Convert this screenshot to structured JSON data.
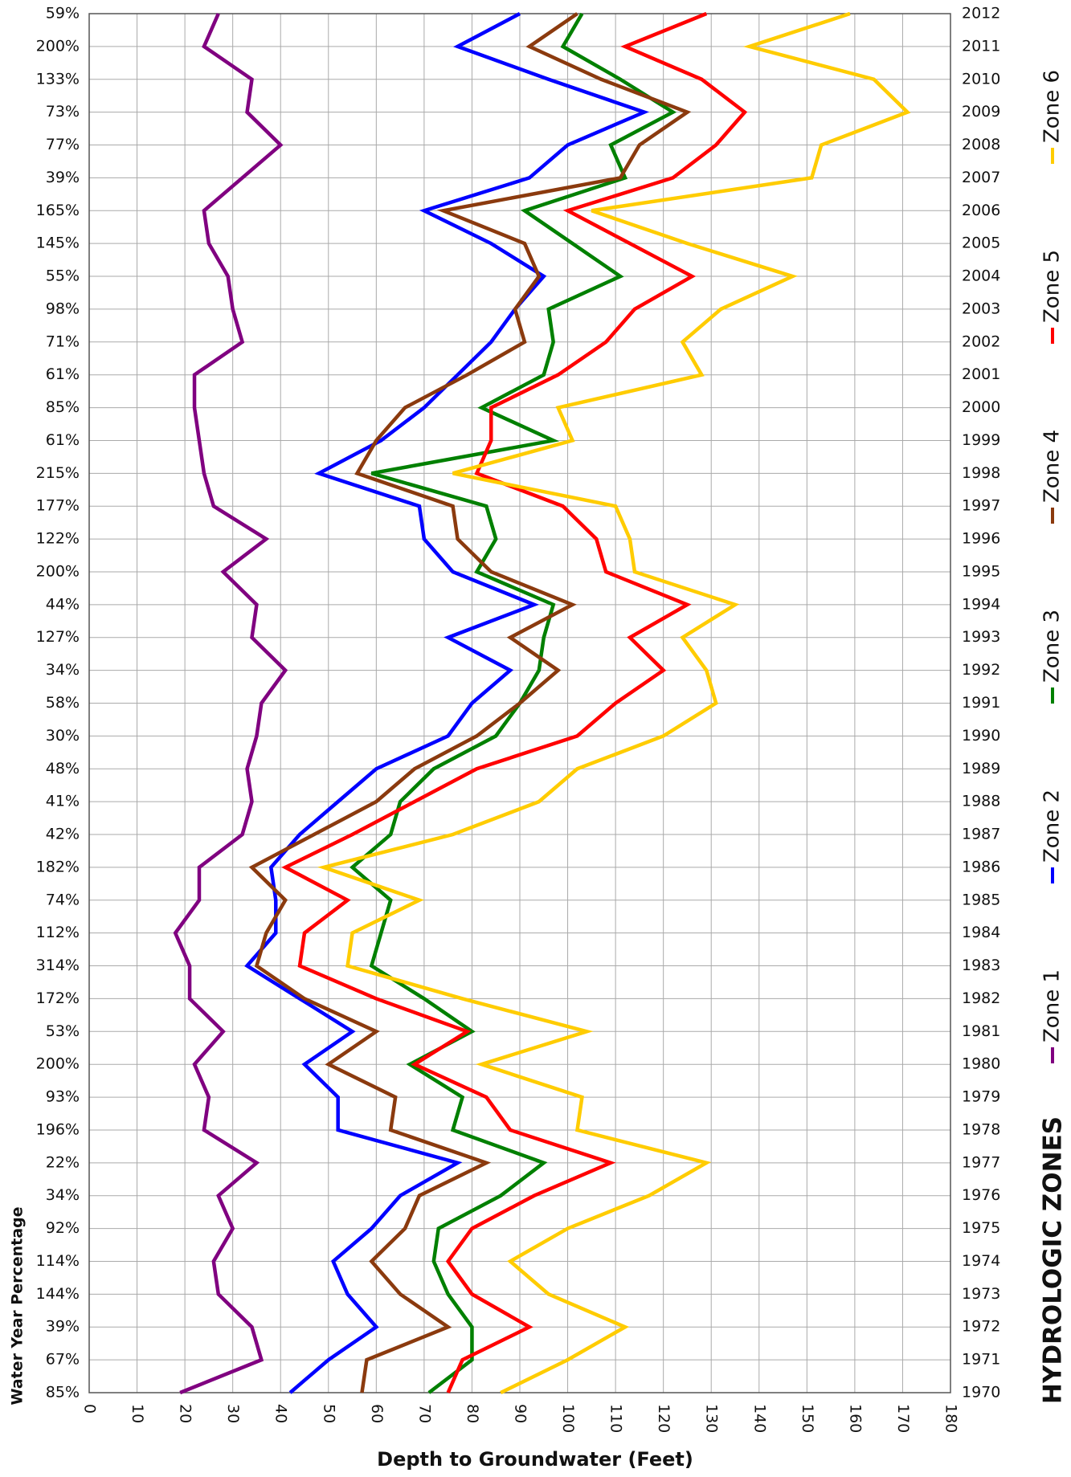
{
  "chart_data": {
    "type": "line",
    "orientation": "horizontal",
    "x_label": "Depth to Groundwater (Feet)",
    "y_label": "Water Year Percentage",
    "legend_title": "HYDROLOGIC ZONES",
    "categories": [
      "1970",
      "1971",
      "1972",
      "1973",
      "1974",
      "1975",
      "1976",
      "1977",
      "1978",
      "1979",
      "1980",
      "1981",
      "1982",
      "1983",
      "1984",
      "1985",
      "1986",
      "1987",
      "1988",
      "1989",
      "1990",
      "1991",
      "1992",
      "1993",
      "1994",
      "1995",
      "1996",
      "1997",
      "1998",
      "1999",
      "2000",
      "2001",
      "2002",
      "2003",
      "2004",
      "2005",
      "2006",
      "2007",
      "2008",
      "2009",
      "2010",
      "2011",
      "2012"
    ],
    "water_year_percentages": [
      "85%",
      "67%",
      "39%",
      "144%",
      "114%",
      "92%",
      "34%",
      "22%",
      "196%",
      "93%",
      "200%",
      "53%",
      "172%",
      "314%",
      "112%",
      "74%",
      "182%",
      "42%",
      "41%",
      "48%",
      "30%",
      "58%",
      "34%",
      "127%",
      "44%",
      "200%",
      "122%",
      "177%",
      "215%",
      "61%",
      "85%",
      "61%",
      "71%",
      "98%",
      "55%",
      "145%",
      "165%",
      "39%",
      "77%",
      "73%",
      "133%",
      "200%",
      "59%"
    ],
    "xlim": [
      0,
      180
    ],
    "xticks": [
      0,
      10,
      20,
      30,
      40,
      50,
      60,
      70,
      80,
      90,
      100,
      110,
      120,
      130,
      140,
      150,
      160,
      170,
      180
    ],
    "grid": true,
    "series": [
      {
        "name": "Zone 1",
        "color": "#800080",
        "values": [
          19,
          36,
          34,
          27,
          26,
          30,
          27,
          35,
          24,
          25,
          22,
          28,
          21,
          21,
          18,
          23,
          23,
          32,
          34,
          33,
          35,
          36,
          41,
          34,
          35,
          28,
          37,
          26,
          24,
          23,
          22,
          22,
          32,
          30,
          29,
          25,
          24,
          32,
          40,
          33,
          34,
          24,
          27
        ]
      },
      {
        "name": "Zone 2",
        "color": "#0000ff",
        "values": [
          42,
          50,
          60,
          54,
          51,
          59,
          65,
          77,
          52,
          52,
          45,
          55,
          44,
          33,
          39,
          39,
          38,
          44,
          52,
          60,
          75,
          80,
          88,
          75,
          93,
          76,
          70,
          69,
          48,
          61,
          70,
          77,
          84,
          89,
          95,
          84,
          70,
          92,
          100,
          116,
          96,
          77,
          90
        ]
      },
      {
        "name": "Zone 3",
        "color": "#008000",
        "values": [
          71,
          80,
          80,
          75,
          72,
          73,
          86,
          95,
          76,
          78,
          67,
          80,
          70,
          59,
          61,
          63,
          55,
          63,
          65,
          72,
          85,
          90,
          94,
          95,
          97,
          81,
          85,
          83,
          59,
          97,
          82,
          95,
          97,
          96,
          111,
          101,
          91,
          112,
          109,
          122,
          111,
          99,
          103
        ]
      },
      {
        "name": "Zone 4",
        "color": "#8b3a0e",
        "values": [
          57,
          58,
          75,
          65,
          59,
          66,
          69,
          83,
          63,
          64,
          50,
          60,
          45,
          35,
          37,
          41,
          34,
          47,
          60,
          68,
          81,
          90,
          98,
          88,
          101,
          84,
          77,
          76,
          56,
          60,
          66,
          79,
          91,
          89,
          94,
          91,
          74,
          111,
          115,
          125,
          107,
          92,
          102
        ]
      },
      {
        "name": "Zone 5",
        "color": "#ff0000",
        "values": [
          75,
          78,
          92,
          80,
          75,
          80,
          93,
          109,
          88,
          83,
          68,
          79,
          60,
          44,
          45,
          54,
          41,
          55,
          68,
          81,
          102,
          110,
          120,
          113,
          125,
          108,
          106,
          99,
          81,
          84,
          84,
          98,
          108,
          114,
          126,
          113,
          100,
          122,
          131,
          137,
          128,
          112,
          129
        ]
      },
      {
        "name": "Zone 6",
        "color": "#ffcc00",
        "values": [
          86,
          100,
          112,
          96,
          88,
          100,
          117,
          129,
          102,
          103,
          82,
          104,
          78,
          54,
          55,
          69,
          49,
          76,
          94,
          102,
          120,
          131,
          129,
          124,
          135,
          114,
          113,
          110,
          76,
          101,
          98,
          128,
          124,
          132,
          147,
          125,
          105,
          151,
          153,
          171,
          164,
          138,
          159
        ]
      }
    ]
  }
}
